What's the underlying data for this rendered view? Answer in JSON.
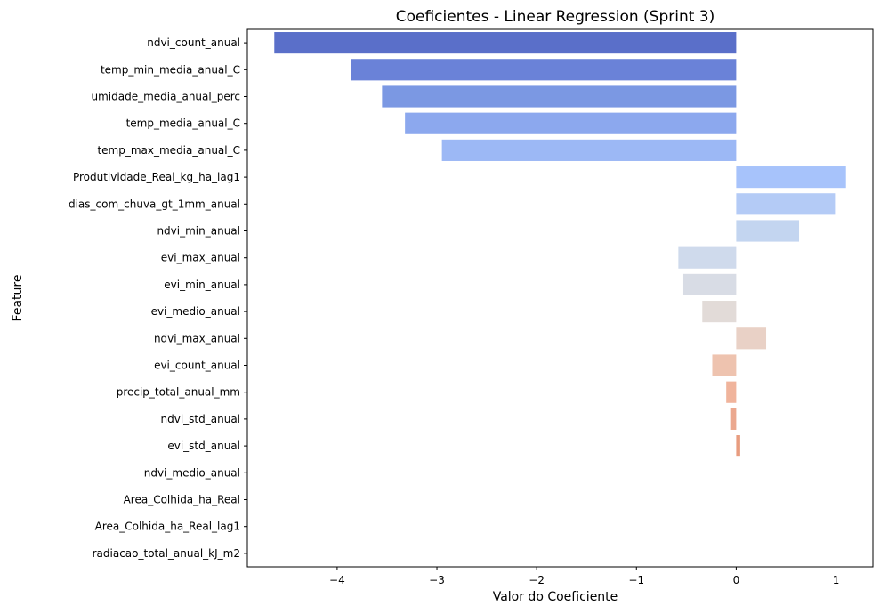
{
  "chart_data": {
    "type": "bar",
    "orientation": "horizontal",
    "title": "Coeficientes - Linear Regression (Sprint 3)",
    "xlabel": "Valor do Coeficiente",
    "ylabel": "Feature",
    "xlim": [
      -4.9,
      1.37
    ],
    "xticks": [
      -4,
      -3,
      -2,
      -1,
      0,
      1
    ],
    "xtick_labels": [
      "−4",
      "−3",
      "−2",
      "−1",
      "0",
      "1"
    ],
    "grid": false,
    "categories": [
      "ndvi_count_anual",
      "temp_min_media_anual_C",
      "umidade_media_anual_perc",
      "temp_media_anual_C",
      "temp_max_media_anual_C",
      "Produtividade_Real_kg_ha_lag1",
      "dias_com_chuva_gt_1mm_anual",
      "ndvi_min_anual",
      "evi_max_anual",
      "evi_min_anual",
      "evi_medio_anual",
      "ndvi_max_anual",
      "evi_count_anual",
      "precip_total_anual_mm",
      "ndvi_std_anual",
      "evi_std_anual",
      "ndvi_medio_anual",
      "Area_Colhida_ha_Real",
      "Area_Colhida_ha_Real_lag1",
      "radiacao_total_anual_kJ_m2"
    ],
    "values": [
      -4.63,
      -3.86,
      -3.55,
      -3.32,
      -2.95,
      1.1,
      0.99,
      0.63,
      -0.58,
      -0.53,
      -0.34,
      0.3,
      -0.24,
      -0.1,
      -0.06,
      0.04,
      0,
      0,
      0,
      0
    ],
    "colors": [
      "#5a6fc9",
      "#6a82d8",
      "#7b98e3",
      "#8ca8ee",
      "#9cb8f5",
      "#a7c3fb",
      "#b4cbf6",
      "#c3d5f0",
      "#cfdaec",
      "#d8dce5",
      "#e2dbd8",
      "#e9d1c6",
      "#eec3af",
      "#f0b49c",
      "#eba88f",
      "#e89c7f",
      "#e49076",
      "#df8468",
      "#d9775d",
      "#d26a52"
    ]
  }
}
